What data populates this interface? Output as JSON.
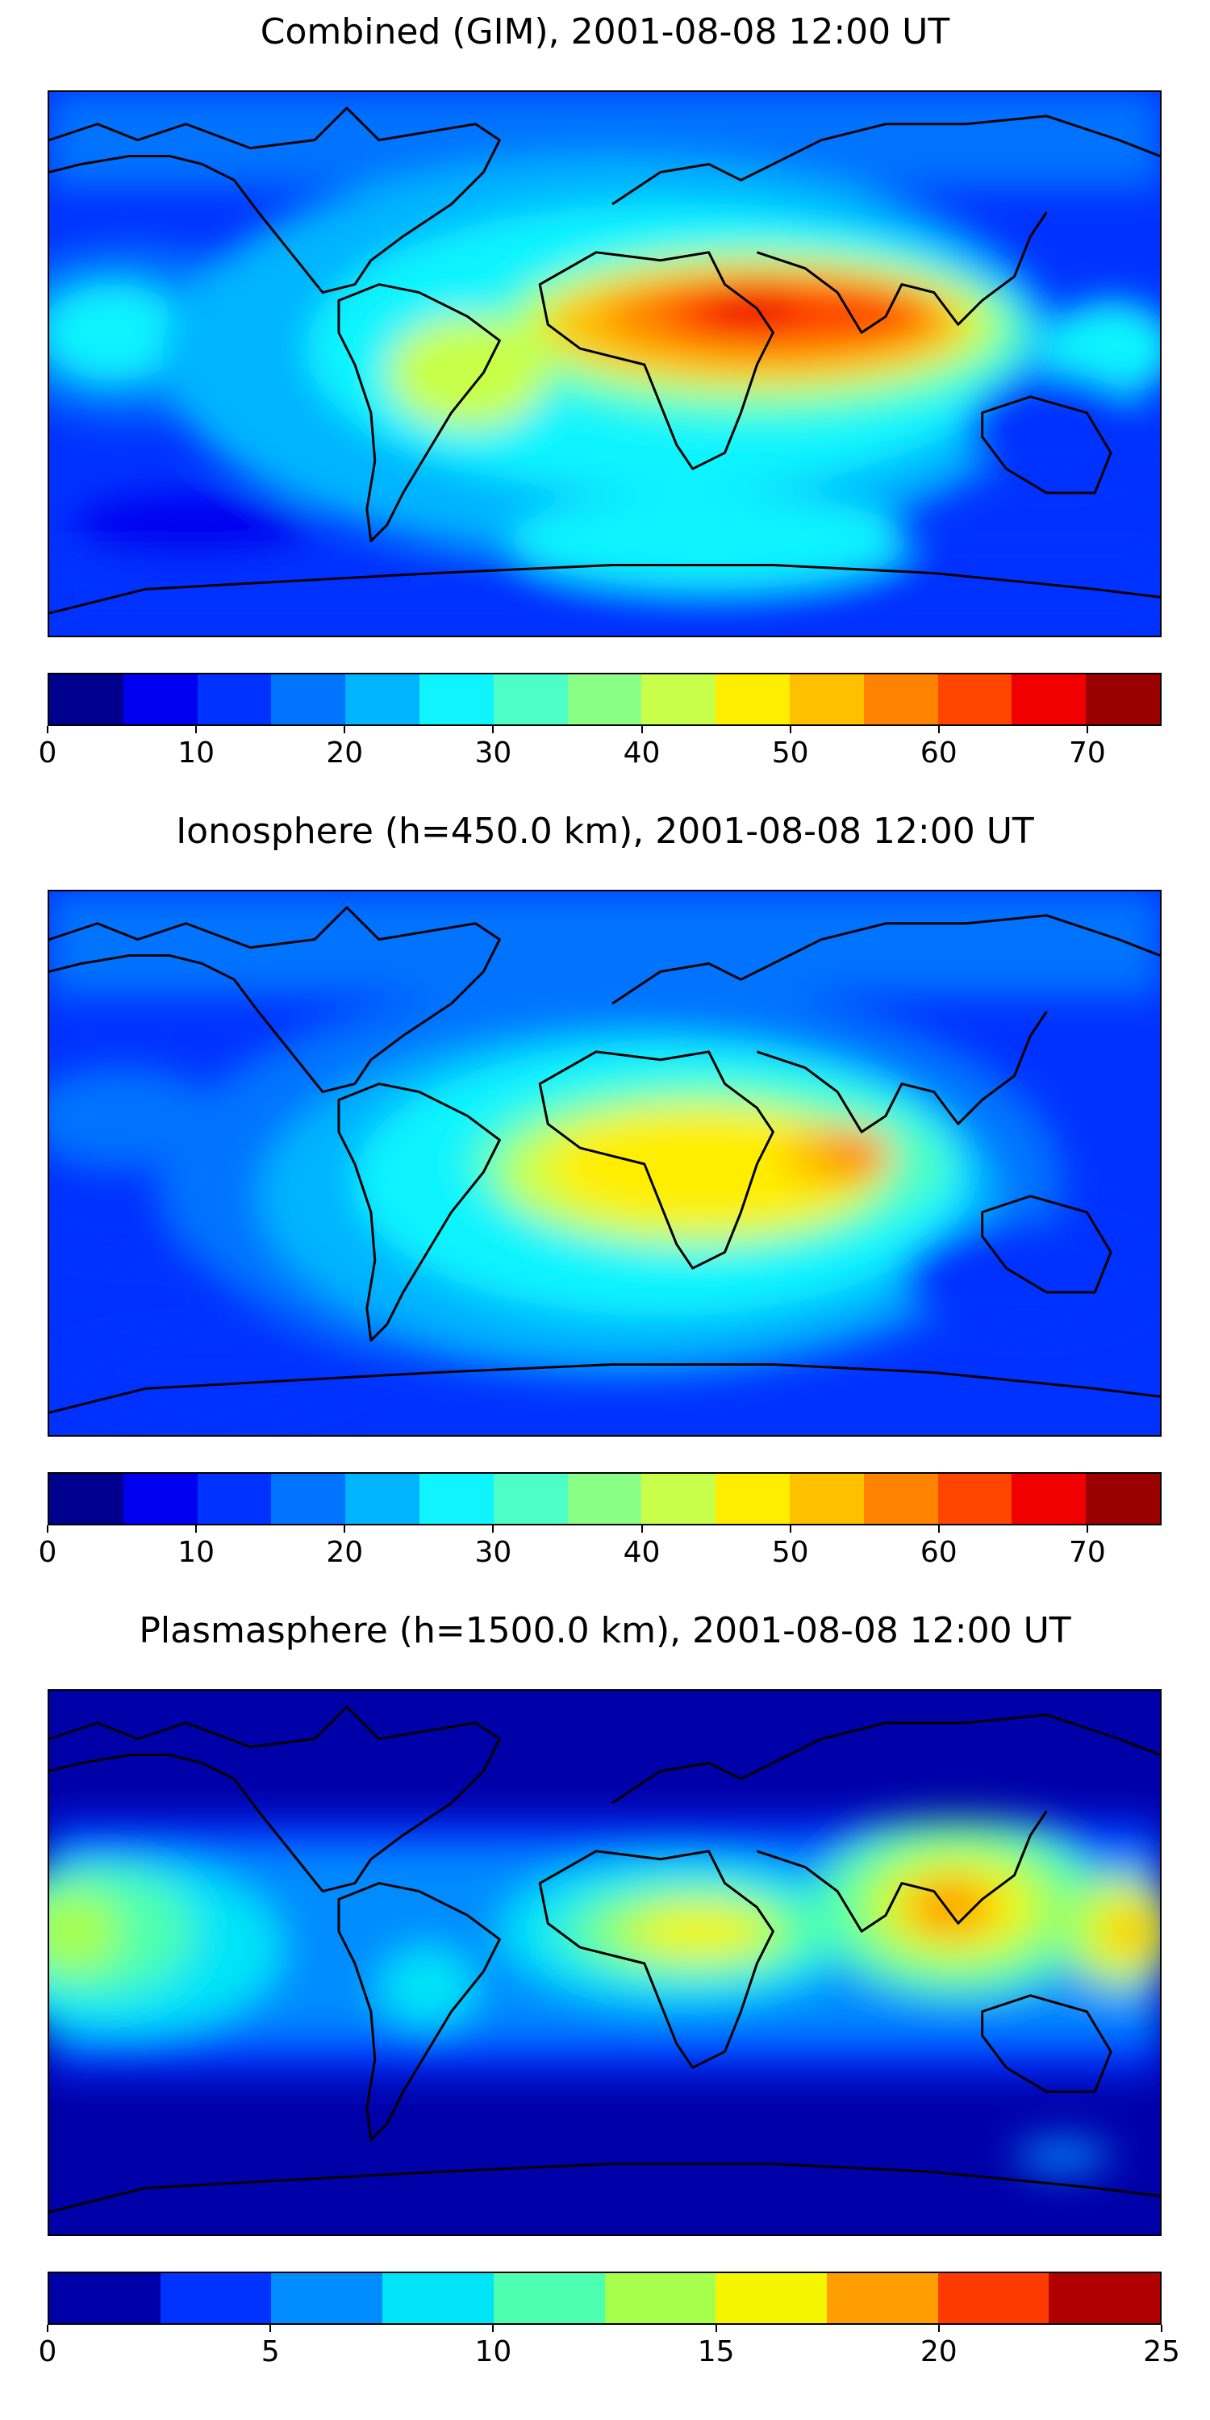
{
  "panels": [
    {
      "title": "Combined (GIM), 2001-08-08 12:00 UT",
      "colorbar": {
        "min": 0,
        "max": 75,
        "colors": [
          "#00008f",
          "#0000f0",
          "#0032ff",
          "#0073ff",
          "#00b4ff",
          "#10f4ff",
          "#4dffc4",
          "#8aff87",
          "#c7ff4a",
          "#ffee00",
          "#ffc000",
          "#ff8300",
          "#ff4500",
          "#f00000",
          "#9a0000"
        ],
        "ticks": [
          "0",
          "10",
          "20",
          "30",
          "40",
          "50",
          "60",
          "70"
        ],
        "tick_values": [
          0,
          10,
          20,
          30,
          40,
          50,
          60,
          70
        ]
      }
    },
    {
      "title": "Ionosphere  (h=450.0 km), 2001-08-08 12:00 UT",
      "colorbar": {
        "min": 0,
        "max": 75,
        "colors": [
          "#00008f",
          "#0000f0",
          "#0032ff",
          "#0073ff",
          "#00b4ff",
          "#10f4ff",
          "#4dffc4",
          "#8aff87",
          "#c7ff4a",
          "#ffee00",
          "#ffc000",
          "#ff8300",
          "#ff4500",
          "#f00000",
          "#9a0000"
        ],
        "ticks": [
          "0",
          "10",
          "20",
          "30",
          "40",
          "50",
          "60",
          "70"
        ],
        "tick_values": [
          0,
          10,
          20,
          30,
          40,
          50,
          60,
          70
        ]
      }
    },
    {
      "title": "Plasmasphere (h=1500.0 km), 2001-08-08 12:00 UT",
      "colorbar": {
        "min": 0,
        "max": 25,
        "colors": [
          "#0000a8",
          "#0033ff",
          "#008cff",
          "#00e4f8",
          "#4dffb0",
          "#a6ff4d",
          "#f5f500",
          "#ff9e00",
          "#ff3a00",
          "#b00000"
        ],
        "ticks": [
          "0",
          "5",
          "10",
          "15",
          "20",
          "25"
        ],
        "tick_values": [
          0,
          5,
          10,
          15,
          20,
          25
        ]
      }
    }
  ]
}
